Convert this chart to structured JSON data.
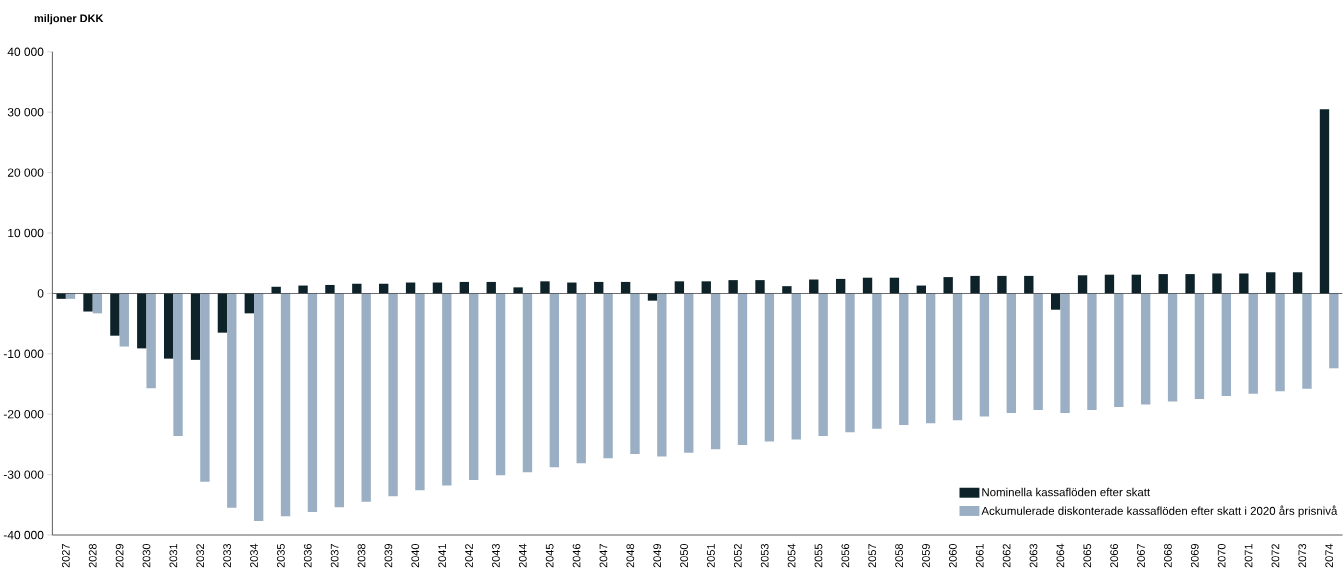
{
  "chart_data": {
    "type": "bar",
    "ylabel": "**miljoner  DKK**",
    "categories": [
      "2027",
      "2028",
      "2029",
      "2030",
      "2031",
      "2032",
      "2033",
      "2034",
      "2035",
      "2036",
      "2037",
      "2038",
      "2039",
      "2040",
      "2041",
      "2042",
      "2043",
      "2044",
      "2045",
      "2046",
      "2047",
      "2048",
      "2049",
      "2050",
      "2051",
      "2052",
      "2053",
      "2054",
      "2055",
      "2056",
      "2057",
      "2058",
      "2059",
      "2060",
      "2061",
      "2062",
      "2063",
      "2064",
      "2065",
      "2066",
      "2067",
      "2068",
      "2069",
      "2070",
      "2071",
      "2072",
      "2073",
      "2074"
    ],
    "series": [
      {
        "name": "Nominella  kassaflöden efter skatt",
        "color": "#0d2329",
        "values": [
          -900,
          -3000,
          -7000,
          -9100,
          -10800,
          -11000,
          -6500,
          -3300,
          1100,
          1300,
          1400,
          1600,
          1600,
          1800,
          1800,
          1900,
          1900,
          1000,
          2000,
          1800,
          1900,
          1900,
          -1200,
          2000,
          2000,
          2200,
          2200,
          1200,
          2300,
          2400,
          2600,
          2600,
          1300,
          2700,
          2900,
          2900,
          2900,
          -2700,
          3000,
          3100,
          3100,
          3200,
          3200,
          3300,
          3300,
          3500,
          3500,
          30500
        ]
      },
      {
        "name": "Ackumulerade  diskonterade kassaflöden efter skatt i 2020 års prisnivå",
        "color": "#9aafc4",
        "values": [
          -900,
          -3300,
          -8800,
          -15700,
          -23600,
          -31200,
          -35500,
          -37700,
          -36900,
          -36200,
          -35400,
          -34500,
          -33600,
          -32600,
          -31800,
          -30900,
          -30100,
          -29600,
          -28800,
          -28100,
          -27300,
          -26600,
          -27000,
          -26400,
          -25800,
          -25100,
          -24500,
          -24200,
          -23600,
          -23000,
          -22400,
          -21800,
          -21500,
          -21000,
          -20400,
          -19800,
          -19300,
          -19800,
          -19300,
          -18800,
          -18400,
          -17900,
          -17500,
          -17000,
          -16600,
          -16200,
          -15800,
          -12400
        ]
      }
    ],
    "ylim": [
      -40000,
      40000
    ],
    "yticks": [
      {
        "value": -40000,
        "label": "-40 000"
      },
      {
        "value": -30000,
        "label": "-30 000"
      },
      {
        "value": -20000,
        "label": "-20 000"
      },
      {
        "value": -10000,
        "label": "-10 000"
      },
      {
        "value": 0,
        "label": "0"
      },
      {
        "value": 10000,
        "label": "10 000"
      },
      {
        "value": 20000,
        "label": "20 000"
      },
      {
        "value": 30000,
        "label": "30 000"
      },
      {
        "value": 40000,
        "label": "40 000"
      }
    ],
    "legend": "bottom right"
  }
}
